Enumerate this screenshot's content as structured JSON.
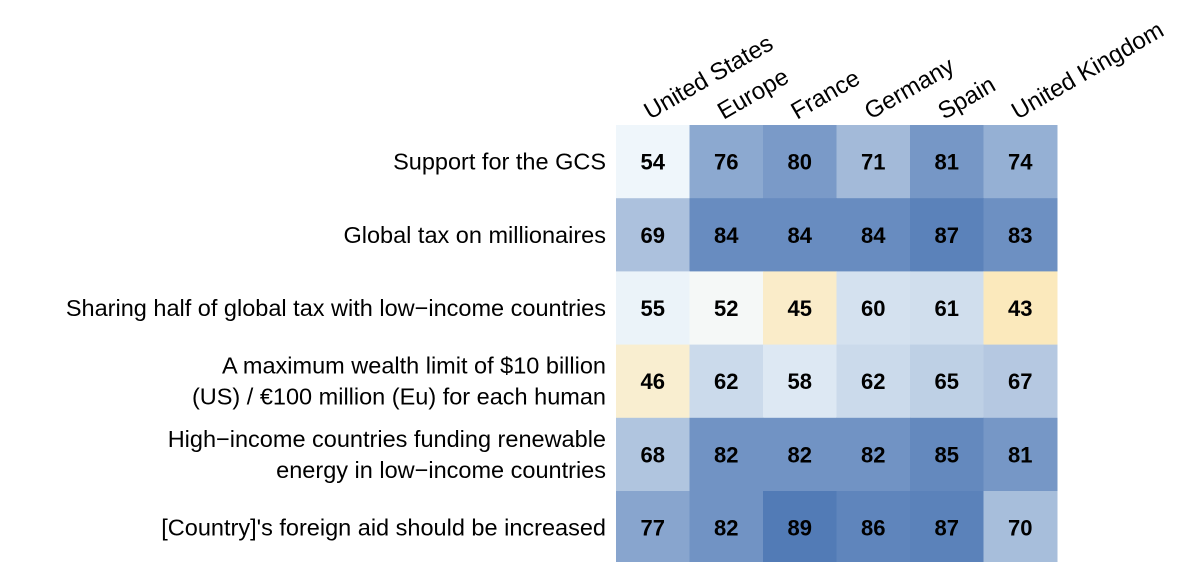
{
  "chart_data": {
    "type": "heatmap",
    "title": "",
    "xlabel": "",
    "ylabel": "",
    "columns": [
      "United States",
      "Europe",
      "France",
      "Germany",
      "Spain",
      "United Kingdom"
    ],
    "rows": [
      {
        "label": [
          "Support for the GCS"
        ],
        "values": [
          54,
          76,
          80,
          71,
          81,
          74
        ]
      },
      {
        "label": [
          "Global tax on millionaires"
        ],
        "values": [
          69,
          84,
          84,
          84,
          87,
          83
        ]
      },
      {
        "label": [
          "Sharing half of global tax with low−income countries"
        ],
        "values": [
          55,
          52,
          45,
          60,
          61,
          43
        ]
      },
      {
        "label": [
          "A maximum wealth limit of $10 billion",
          "(US) / €100 million (Eu) for each human"
        ],
        "values": [
          46,
          62,
          58,
          62,
          65,
          67
        ]
      },
      {
        "label": [
          "High−income countries funding renewable",
          "energy in low−income countries"
        ],
        "values": [
          68,
          82,
          82,
          82,
          85,
          81
        ]
      },
      {
        "label": [
          "[Country]'s foreign aid should be increased"
        ],
        "values": [
          77,
          82,
          89,
          86,
          87,
          70
        ]
      }
    ],
    "color_scale": {
      "low_color": "#fde4a9",
      "mid_color": "#f4fafd",
      "high_color": "#4470b0",
      "low_value": 40,
      "mid_value": 53,
      "high_value": 92
    },
    "legend": "none",
    "grid": false
  }
}
